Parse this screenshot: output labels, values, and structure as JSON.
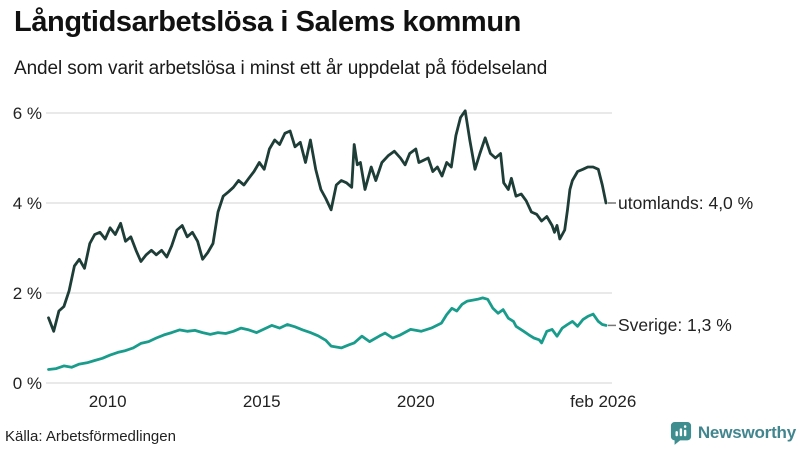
{
  "header": {
    "title": "Långtidsarbetslösa i Salems kommun",
    "subtitle": "Andel som varit arbetslösa i minst ett år uppdelat på födelseland"
  },
  "footer": {
    "source": "Källa: Arbetsförmedlingen",
    "brand_name": "Newsworthy"
  },
  "colors": {
    "utomlands_line": "#1d3d36",
    "sverige_line": "#199c8c",
    "grid": "#dcdcdc",
    "end_dash": "#777777",
    "text": "#222222",
    "brand": "#41858f"
  },
  "chart_data": {
    "type": "line",
    "title": "Långtidsarbetslösa i Salems kommun",
    "subtitle": "Andel som varit arbetslösa i minst ett år uppdelat på födelseland",
    "x_unit": "year (monthly data)",
    "y_unit": "percent",
    "x_range": [
      2008,
      2026.17
    ],
    "y_range": [
      0,
      6.3
    ],
    "grid": "horizontal",
    "legend_position": "end-of-line",
    "y_ticks": [
      {
        "label": "0 %",
        "value": 0
      },
      {
        "label": "2 %",
        "value": 2
      },
      {
        "label": "4 %",
        "value": 4
      },
      {
        "label": "6 %",
        "value": 6
      }
    ],
    "x_ticks": [
      {
        "label": "2010",
        "value": 2010
      },
      {
        "label": "2015",
        "value": 2015
      },
      {
        "label": "2020",
        "value": 2020
      },
      {
        "label": "feb 2026",
        "value": 2026.08
      }
    ],
    "series": [
      {
        "name": "utomlands",
        "end_label": "utomlands: 4,0 %",
        "final_value": 4.0,
        "color": "#1d3d36",
        "points": [
          [
            2008.08,
            1.45
          ],
          [
            2008.25,
            1.15
          ],
          [
            2008.42,
            1.6
          ],
          [
            2008.58,
            1.7
          ],
          [
            2008.75,
            2.05
          ],
          [
            2008.92,
            2.6
          ],
          [
            2009.08,
            2.75
          ],
          [
            2009.25,
            2.55
          ],
          [
            2009.42,
            3.1
          ],
          [
            2009.58,
            3.3
          ],
          [
            2009.75,
            3.35
          ],
          [
            2009.92,
            3.2
          ],
          [
            2010.08,
            3.45
          ],
          [
            2010.25,
            3.3
          ],
          [
            2010.42,
            3.55
          ],
          [
            2010.58,
            3.15
          ],
          [
            2010.75,
            3.25
          ],
          [
            2010.92,
            2.95
          ],
          [
            2011.08,
            2.7
          ],
          [
            2011.25,
            2.85
          ],
          [
            2011.42,
            2.95
          ],
          [
            2011.58,
            2.85
          ],
          [
            2011.75,
            2.95
          ],
          [
            2011.92,
            2.8
          ],
          [
            2012.08,
            3.05
          ],
          [
            2012.25,
            3.4
          ],
          [
            2012.42,
            3.5
          ],
          [
            2012.58,
            3.25
          ],
          [
            2012.75,
            3.35
          ],
          [
            2012.92,
            3.15
          ],
          [
            2013.08,
            2.75
          ],
          [
            2013.25,
            2.9
          ],
          [
            2013.42,
            3.1
          ],
          [
            2013.58,
            3.8
          ],
          [
            2013.75,
            4.15
          ],
          [
            2013.92,
            4.25
          ],
          [
            2014.08,
            4.35
          ],
          [
            2014.25,
            4.5
          ],
          [
            2014.42,
            4.4
          ],
          [
            2014.58,
            4.55
          ],
          [
            2014.75,
            4.7
          ],
          [
            2014.92,
            4.9
          ],
          [
            2015.08,
            4.75
          ],
          [
            2015.25,
            5.2
          ],
          [
            2015.42,
            5.4
          ],
          [
            2015.58,
            5.3
          ],
          [
            2015.75,
            5.55
          ],
          [
            2015.92,
            5.6
          ],
          [
            2016.08,
            5.25
          ],
          [
            2016.25,
            5.35
          ],
          [
            2016.42,
            4.9
          ],
          [
            2016.58,
            5.4
          ],
          [
            2016.75,
            4.75
          ],
          [
            2016.92,
            4.3
          ],
          [
            2017.08,
            4.1
          ],
          [
            2017.25,
            3.85
          ],
          [
            2017.42,
            4.4
          ],
          [
            2017.58,
            4.5
          ],
          [
            2017.75,
            4.45
          ],
          [
            2017.92,
            4.35
          ],
          [
            2018.0,
            5.3
          ],
          [
            2018.1,
            4.85
          ],
          [
            2018.2,
            4.9
          ],
          [
            2018.35,
            4.3
          ],
          [
            2018.55,
            4.8
          ],
          [
            2018.7,
            4.5
          ],
          [
            2018.9,
            4.9
          ],
          [
            2019.1,
            5.05
          ],
          [
            2019.3,
            5.15
          ],
          [
            2019.5,
            5.0
          ],
          [
            2019.65,
            4.85
          ],
          [
            2019.8,
            5.1
          ],
          [
            2020.0,
            5.2
          ],
          [
            2020.1,
            4.9
          ],
          [
            2020.25,
            4.95
          ],
          [
            2020.4,
            5.0
          ],
          [
            2020.55,
            4.7
          ],
          [
            2020.7,
            4.8
          ],
          [
            2020.85,
            4.6
          ],
          [
            2021.0,
            4.9
          ],
          [
            2021.15,
            4.8
          ],
          [
            2021.3,
            5.5
          ],
          [
            2021.45,
            5.9
          ],
          [
            2021.6,
            6.05
          ],
          [
            2021.75,
            5.4
          ],
          [
            2021.92,
            4.75
          ],
          [
            2022.08,
            5.1
          ],
          [
            2022.25,
            5.45
          ],
          [
            2022.42,
            5.1
          ],
          [
            2022.58,
            5.0
          ],
          [
            2022.75,
            5.1
          ],
          [
            2022.85,
            4.45
          ],
          [
            2023.0,
            4.3
          ],
          [
            2023.1,
            4.55
          ],
          [
            2023.25,
            4.15
          ],
          [
            2023.42,
            4.2
          ],
          [
            2023.58,
            4.05
          ],
          [
            2023.75,
            3.8
          ],
          [
            2023.92,
            3.75
          ],
          [
            2024.08,
            3.6
          ],
          [
            2024.25,
            3.7
          ],
          [
            2024.42,
            3.5
          ],
          [
            2024.5,
            3.35
          ],
          [
            2024.58,
            3.5
          ],
          [
            2024.67,
            3.2
          ],
          [
            2024.83,
            3.4
          ],
          [
            2024.92,
            3.85
          ],
          [
            2025.0,
            4.3
          ],
          [
            2025.08,
            4.5
          ],
          [
            2025.25,
            4.7
          ],
          [
            2025.42,
            4.75
          ],
          [
            2025.58,
            4.8
          ],
          [
            2025.75,
            4.8
          ],
          [
            2025.92,
            4.75
          ],
          [
            2026.05,
            4.4
          ],
          [
            2026.17,
            4.0
          ]
        ]
      },
      {
        "name": "Sverige",
        "end_label": "Sverige: 1,3 %",
        "final_value": 1.3,
        "color": "#199c8c",
        "points": [
          [
            2008.08,
            0.3
          ],
          [
            2008.33,
            0.32
          ],
          [
            2008.58,
            0.38
          ],
          [
            2008.83,
            0.35
          ],
          [
            2009.08,
            0.42
          ],
          [
            2009.33,
            0.45
          ],
          [
            2009.58,
            0.5
          ],
          [
            2009.83,
            0.55
          ],
          [
            2010.08,
            0.62
          ],
          [
            2010.33,
            0.68
          ],
          [
            2010.58,
            0.72
          ],
          [
            2010.83,
            0.78
          ],
          [
            2011.08,
            0.88
          ],
          [
            2011.33,
            0.92
          ],
          [
            2011.58,
            1.0
          ],
          [
            2011.83,
            1.07
          ],
          [
            2012.08,
            1.12
          ],
          [
            2012.33,
            1.18
          ],
          [
            2012.58,
            1.15
          ],
          [
            2012.83,
            1.17
          ],
          [
            2013.08,
            1.12
          ],
          [
            2013.33,
            1.08
          ],
          [
            2013.58,
            1.12
          ],
          [
            2013.83,
            1.1
          ],
          [
            2014.08,
            1.15
          ],
          [
            2014.33,
            1.22
          ],
          [
            2014.58,
            1.18
          ],
          [
            2014.83,
            1.12
          ],
          [
            2015.08,
            1.2
          ],
          [
            2015.33,
            1.28
          ],
          [
            2015.58,
            1.22
          ],
          [
            2015.83,
            1.3
          ],
          [
            2016.08,
            1.25
          ],
          [
            2016.33,
            1.18
          ],
          [
            2016.58,
            1.12
          ],
          [
            2016.83,
            1.05
          ],
          [
            2017.08,
            0.95
          ],
          [
            2017.25,
            0.82
          ],
          [
            2017.58,
            0.78
          ],
          [
            2017.83,
            0.85
          ],
          [
            2018.0,
            0.89
          ],
          [
            2018.25,
            1.04
          ],
          [
            2018.5,
            0.92
          ],
          [
            2018.83,
            1.05
          ],
          [
            2019.0,
            1.11
          ],
          [
            2019.25,
            1.0
          ],
          [
            2019.5,
            1.07
          ],
          [
            2019.83,
            1.19
          ],
          [
            2020.17,
            1.15
          ],
          [
            2020.5,
            1.22
          ],
          [
            2020.83,
            1.33
          ],
          [
            2021.0,
            1.52
          ],
          [
            2021.17,
            1.66
          ],
          [
            2021.33,
            1.6
          ],
          [
            2021.5,
            1.75
          ],
          [
            2021.67,
            1.82
          ],
          [
            2021.83,
            1.84
          ],
          [
            2022.0,
            1.86
          ],
          [
            2022.17,
            1.89
          ],
          [
            2022.33,
            1.86
          ],
          [
            2022.5,
            1.66
          ],
          [
            2022.67,
            1.55
          ],
          [
            2022.83,
            1.63
          ],
          [
            2023.0,
            1.44
          ],
          [
            2023.17,
            1.37
          ],
          [
            2023.25,
            1.26
          ],
          [
            2023.5,
            1.15
          ],
          [
            2023.67,
            1.07
          ],
          [
            2023.83,
            1.0
          ],
          [
            2024.0,
            0.96
          ],
          [
            2024.08,
            0.89
          ],
          [
            2024.25,
            1.15
          ],
          [
            2024.42,
            1.19
          ],
          [
            2024.58,
            1.04
          ],
          [
            2024.75,
            1.22
          ],
          [
            2024.92,
            1.3
          ],
          [
            2025.08,
            1.37
          ],
          [
            2025.25,
            1.26
          ],
          [
            2025.42,
            1.41
          ],
          [
            2025.58,
            1.48
          ],
          [
            2025.75,
            1.53
          ],
          [
            2025.92,
            1.37
          ],
          [
            2026.05,
            1.3
          ],
          [
            2026.17,
            1.28
          ]
        ]
      }
    ]
  },
  "layout_note": "horizontal gridlines only; series labeled at right line ends with short gray dashes"
}
